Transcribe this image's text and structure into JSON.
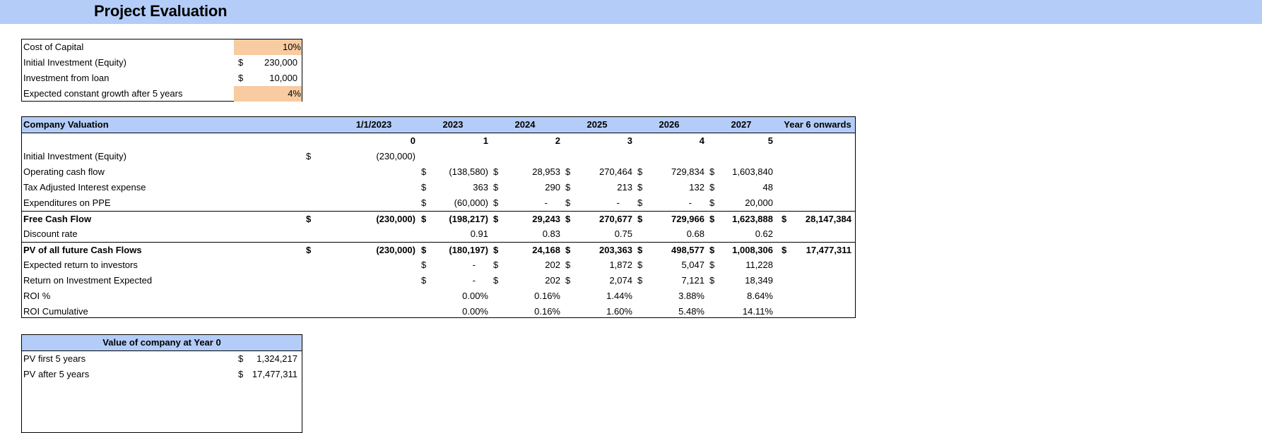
{
  "header": {
    "title": "Project Evaluation",
    "color": "#b4cdf8"
  },
  "assumptions": {
    "highlight_color": "#f8cba0",
    "rows": [
      {
        "label": "Cost of Capital",
        "currency": "",
        "value": "10%"
      },
      {
        "label": "Initial Investment (Equity)",
        "currency": "$",
        "value": "230,000"
      },
      {
        "label": "Investment from loan",
        "currency": "$",
        "value": "10,000"
      },
      {
        "label": "Expected constant growth after 5 years",
        "currency": "",
        "value": "4%"
      }
    ]
  },
  "valuation": {
    "title": "Company Valuation",
    "columns": [
      "1/1/2023",
      "2023",
      "2024",
      "2025",
      "2026",
      "2027",
      "Year 6 onwards"
    ],
    "periods": [
      "0",
      "1",
      "2",
      "3",
      "4",
      "5",
      ""
    ],
    "rows": [
      {
        "label": "Initial Investment (Equity)",
        "bold": false,
        "cells": [
          {
            "cur": "$",
            "val": "(230,000)"
          },
          {
            "cur": "",
            "val": ""
          },
          {
            "cur": "",
            "val": ""
          },
          {
            "cur": "",
            "val": ""
          },
          {
            "cur": "",
            "val": ""
          },
          {
            "cur": "",
            "val": ""
          },
          {
            "cur": "",
            "val": ""
          }
        ]
      },
      {
        "label": "Operating cash flow",
        "bold": false,
        "cells": [
          {
            "cur": "",
            "val": ""
          },
          {
            "cur": "$",
            "val": "(138,580)"
          },
          {
            "cur": "$",
            "val": "28,953"
          },
          {
            "cur": "$",
            "val": "270,464"
          },
          {
            "cur": "$",
            "val": "729,834"
          },
          {
            "cur": "$",
            "val": "1,603,840"
          },
          {
            "cur": "",
            "val": ""
          }
        ]
      },
      {
        "label": "Tax Adjusted Interest expense",
        "bold": false,
        "cells": [
          {
            "cur": "",
            "val": ""
          },
          {
            "cur": "$",
            "val": "363"
          },
          {
            "cur": "$",
            "val": "290"
          },
          {
            "cur": "$",
            "val": "213"
          },
          {
            "cur": "$",
            "val": "132"
          },
          {
            "cur": "$",
            "val": "48"
          },
          {
            "cur": "",
            "val": ""
          }
        ]
      },
      {
        "label": "Expenditures on PPE",
        "bold": false,
        "cells": [
          {
            "cur": "",
            "val": ""
          },
          {
            "cur": "$",
            "val": "(60,000)"
          },
          {
            "cur": "$",
            "val": "-"
          },
          {
            "cur": "$",
            "val": "-"
          },
          {
            "cur": "$",
            "val": "-"
          },
          {
            "cur": "$",
            "val": "20,000"
          },
          {
            "cur": "",
            "val": ""
          }
        ]
      },
      {
        "label": "Free Cash Flow",
        "bold": true,
        "cells": [
          {
            "cur": "$",
            "val": "(230,000)"
          },
          {
            "cur": "$",
            "val": "(198,217)"
          },
          {
            "cur": "$",
            "val": "29,243"
          },
          {
            "cur": "$",
            "val": "270,677"
          },
          {
            "cur": "$",
            "val": "729,966"
          },
          {
            "cur": "$",
            "val": "1,623,888"
          },
          {
            "cur": "$",
            "val": "28,147,384"
          }
        ]
      },
      {
        "label": "Discount rate",
        "bold": false,
        "cells": [
          {
            "cur": "",
            "val": ""
          },
          {
            "cur": "",
            "val": "0.91"
          },
          {
            "cur": "",
            "val": "0.83"
          },
          {
            "cur": "",
            "val": "0.75"
          },
          {
            "cur": "",
            "val": "0.68"
          },
          {
            "cur": "",
            "val": "0.62"
          },
          {
            "cur": "",
            "val": ""
          }
        ]
      },
      {
        "label": "PV of all future Cash Flows",
        "bold": true,
        "cells": [
          {
            "cur": "$",
            "val": "(230,000)"
          },
          {
            "cur": "$",
            "val": "(180,197)"
          },
          {
            "cur": "$",
            "val": "24,168"
          },
          {
            "cur": "$",
            "val": "203,363"
          },
          {
            "cur": "$",
            "val": "498,577"
          },
          {
            "cur": "$",
            "val": "1,008,306"
          },
          {
            "cur": "$",
            "val": "17,477,311"
          }
        ]
      },
      {
        "label": "Expected return to investors",
        "bold": false,
        "cells": [
          {
            "cur": "",
            "val": ""
          },
          {
            "cur": "$",
            "val": "-"
          },
          {
            "cur": "$",
            "val": "202"
          },
          {
            "cur": "$",
            "val": "1,872"
          },
          {
            "cur": "$",
            "val": "5,047"
          },
          {
            "cur": "$",
            "val": "11,228"
          },
          {
            "cur": "",
            "val": ""
          }
        ]
      },
      {
        "label": "Return on Investment Expected",
        "bold": false,
        "cells": [
          {
            "cur": "",
            "val": ""
          },
          {
            "cur": "$",
            "val": "-"
          },
          {
            "cur": "$",
            "val": "202"
          },
          {
            "cur": "$",
            "val": "2,074"
          },
          {
            "cur": "$",
            "val": "7,121"
          },
          {
            "cur": "$",
            "val": "18,349"
          },
          {
            "cur": "",
            "val": ""
          }
        ]
      },
      {
        "label": "ROI %",
        "bold": false,
        "cells": [
          {
            "cur": "",
            "val": ""
          },
          {
            "cur": "",
            "val": "0.00%"
          },
          {
            "cur": "",
            "val": "0.16%"
          },
          {
            "cur": "",
            "val": "1.44%"
          },
          {
            "cur": "",
            "val": "3.88%"
          },
          {
            "cur": "",
            "val": "8.64%"
          },
          {
            "cur": "",
            "val": ""
          }
        ]
      },
      {
        "label": "ROI Cumulative",
        "bold": false,
        "cells": [
          {
            "cur": "",
            "val": ""
          },
          {
            "cur": "",
            "val": "0.00%"
          },
          {
            "cur": "",
            "val": "0.16%"
          },
          {
            "cur": "",
            "val": "1.60%"
          },
          {
            "cur": "",
            "val": "5.48%"
          },
          {
            "cur": "",
            "val": "14.11%"
          },
          {
            "cur": "",
            "val": ""
          }
        ]
      }
    ]
  },
  "company_value": {
    "title": "Value of company at Year 0",
    "rows": [
      {
        "label": "PV first 5 years",
        "currency": "$",
        "value": "1,324,217"
      },
      {
        "label": "PV after 5 years",
        "currency": "$",
        "value": "17,477,311"
      }
    ]
  }
}
